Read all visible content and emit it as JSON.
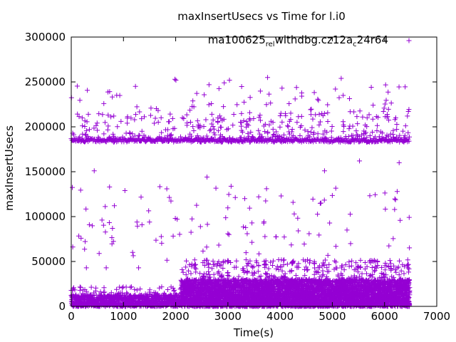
{
  "chart_data": {
    "type": "scatter",
    "title": "maxInsertUsecs vs Time for l.i0",
    "xlabel": "Time(s)",
    "ylabel": "maxInsertUsecs",
    "xlim": [
      0,
      7000
    ],
    "ylim": [
      0,
      300000
    ],
    "xticks": [
      0,
      1000,
      2000,
      3000,
      4000,
      5000,
      6000,
      7000
    ],
    "yticks": [
      0,
      50000,
      100000,
      150000,
      200000,
      250000,
      300000
    ],
    "grid": false,
    "legend_position": "top-right",
    "marker": "+",
    "series": [
      {
        "name": "ma100625_rel_withdbg.cz12a_c24r64",
        "legend_text": {
          "parts": [
            "ma100625",
            "rel",
            "withdbg.cz12a",
            "c",
            "24r64"
          ],
          "subscripted_parts": [
            1,
            3
          ]
        },
        "color": "#9400d3",
        "x_range": [
          0,
          6480
        ],
        "band_core": {
          "level": 185000,
          "spread": 2000
        },
        "outliers": [
          {
            "x": 1985,
            "y": 253000
          },
          {
            "x": 2005,
            "y": 252000
          },
          {
            "x": 3760,
            "y": 255000
          },
          {
            "x": 5170,
            "y": 254000
          },
          {
            "x": 3030,
            "y": 252000
          },
          {
            "x": 1230,
            "y": 245000
          },
          {
            "x": 2930,
            "y": 249000
          },
          {
            "x": 5520,
            "y": 162000
          },
          {
            "x": 6280,
            "y": 160000
          },
          {
            "x": 2600,
            "y": 144000
          },
          {
            "x": 4850,
            "y": 151000
          },
          {
            "x": 440,
            "y": 151000
          },
          {
            "x": 3000,
            "y": 81000
          },
          {
            "x": 3020,
            "y": 80000
          },
          {
            "x": 1830,
            "y": 131000
          },
          {
            "x": 290,
            "y": 43000
          },
          {
            "x": 670,
            "y": 43000
          },
          {
            "x": 1290,
            "y": 43000
          },
          {
            "x": 3590,
            "y": 122000
          },
          {
            "x": 4020,
            "y": 123000
          }
        ]
      }
    ]
  }
}
